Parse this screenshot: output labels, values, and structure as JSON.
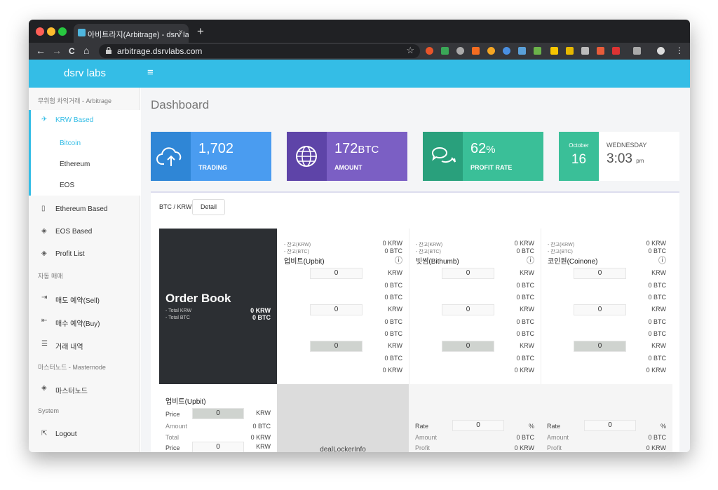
{
  "browser": {
    "tab_title": "아비트라지(Arbitrage) - dsrv labs",
    "tab_close": "×",
    "new_tab": "+",
    "url": "arbitrage.dsrvlabs.com",
    "nav": {
      "back": "←",
      "forward": "→",
      "reload": "C",
      "home": "⌂"
    },
    "star": "☆",
    "menu": "⋮"
  },
  "app": {
    "brand": "dsrv labs",
    "menu_icon": "≡"
  },
  "sidebar": {
    "section1": "무위험 차익거래 - Arbitrage",
    "krw_based": "KRW Based",
    "subs": [
      "Bitcoin",
      "Ethereum",
      "EOS"
    ],
    "eth_based": "Ethereum Based",
    "eos_based": "EOS Based",
    "profit_list": "Profit List",
    "section2": "자동 매매",
    "sell": "매도 예약(Sell)",
    "buy": "매수 예약(Buy)",
    "history": "거래 내역",
    "section3": "마스터노드 - Masternode",
    "masternode": "마스터노드",
    "section4": "System",
    "logout": "Logout"
  },
  "page": {
    "title": "Dashboard"
  },
  "cards": [
    {
      "value": "1,702",
      "unit": "",
      "label": "TRADING",
      "color": "#3ea0f0",
      "dark": "#2f86d6",
      "icon": "cloud-upload-icon"
    },
    {
      "value": "172",
      "unit": "BTC",
      "label": "AMOUNT",
      "color": "#7b5fc4",
      "dark": "#5e44a8",
      "icon": "globe-icon"
    },
    {
      "value": "62",
      "unit": "%",
      "label": "PROFIT RATE",
      "color": "#3abf98",
      "dark": "#29a07c",
      "icon": "chat-icon"
    }
  ],
  "date": {
    "month": "October",
    "day": "16",
    "weekday": "WEDNESDAY",
    "time": "3:03",
    "ampm": "pm",
    "color": "#3abf98"
  },
  "panel": {
    "pair": "BTC / KRW",
    "detail": "Detail",
    "orderbook": {
      "title": "Order Book",
      "total_krw_label": "- Total KRW",
      "total_krw": "0  KRW",
      "total_btc_label": "- Total BTC",
      "total_btc": "0  BTC"
    },
    "exchanges": [
      {
        "name": "업비트(Upbit)",
        "balance_krw_label": "- 잔고(KRW)",
        "balance_btc_label": "- 잔고(BTC)",
        "balance_krw": "0  KRW",
        "balance_btc": "0  BTC",
        "info": "ⓘ",
        "rows": [
          {
            "box": "0",
            "lines": [
              "KRW",
              "0  BTC",
              "0  BTC"
            ]
          },
          {
            "box": "0",
            "lines": [
              "KRW",
              "0  BTC",
              "0  BTC"
            ]
          },
          {
            "box": "0",
            "lines": [
              "KRW",
              "0  BTC",
              "0  KRW"
            ]
          }
        ]
      },
      {
        "name": "빗썸(Bithumb)",
        "balance_krw_label": "- 잔고(KRW)",
        "balance_btc_label": "- 잔고(BTC)",
        "balance_krw": "0  KRW",
        "balance_btc": "0  BTC",
        "info": "ⓘ",
        "rows": [
          {
            "box": "0",
            "lines": [
              "KRW",
              "0  BTC",
              "0  BTC"
            ]
          },
          {
            "box": "0",
            "lines": [
              "KRW",
              "0  BTC",
              "0  BTC"
            ]
          },
          {
            "box": "0",
            "lines": [
              "KRW",
              "0  BTC",
              "0  KRW"
            ]
          }
        ]
      },
      {
        "name": "코인원(Coinone)",
        "balance_krw_label": "- 잔고(KRW)",
        "balance_btc_label": "- 잔고(BTC)",
        "balance_krw": "0  KRW",
        "balance_btc": "0  BTC",
        "info": "ⓘ",
        "rows": [
          {
            "box": "0",
            "lines": [
              "KRW",
              "0  BTC",
              "0  BTC"
            ]
          },
          {
            "box": "0",
            "lines": [
              "KRW",
              "0  BTC",
              "0  BTC"
            ]
          },
          {
            "box": "0",
            "lines": [
              "KRW",
              "0  BTC",
              "0  KRW"
            ]
          }
        ]
      }
    ],
    "bottom": {
      "upbit": {
        "title": "업비트(Upbit)",
        "price_label": "Price",
        "price": "0",
        "price_unit": "KRW",
        "amount_label": "Amount",
        "amount": "0  BTC",
        "total_label": "Total",
        "total": "0  KRW",
        "price2_label": "Price",
        "price2": "0",
        "price2_unit": "KRW"
      },
      "locker": "dealLockerInfo",
      "rate_cols": [
        {
          "rate_label": "Rate",
          "rate": "0",
          "rate_unit": "%",
          "amount_label": "Amount",
          "amount": "0  BTC",
          "profit_label": "Profit",
          "profit": "0  KRW"
        },
        {
          "rate_label": "Rate",
          "rate": "0",
          "rate_unit": "%",
          "amount_label": "Amount",
          "amount": "0  BTC",
          "profit_label": "Profit",
          "profit": "0  KRW"
        }
      ]
    }
  }
}
